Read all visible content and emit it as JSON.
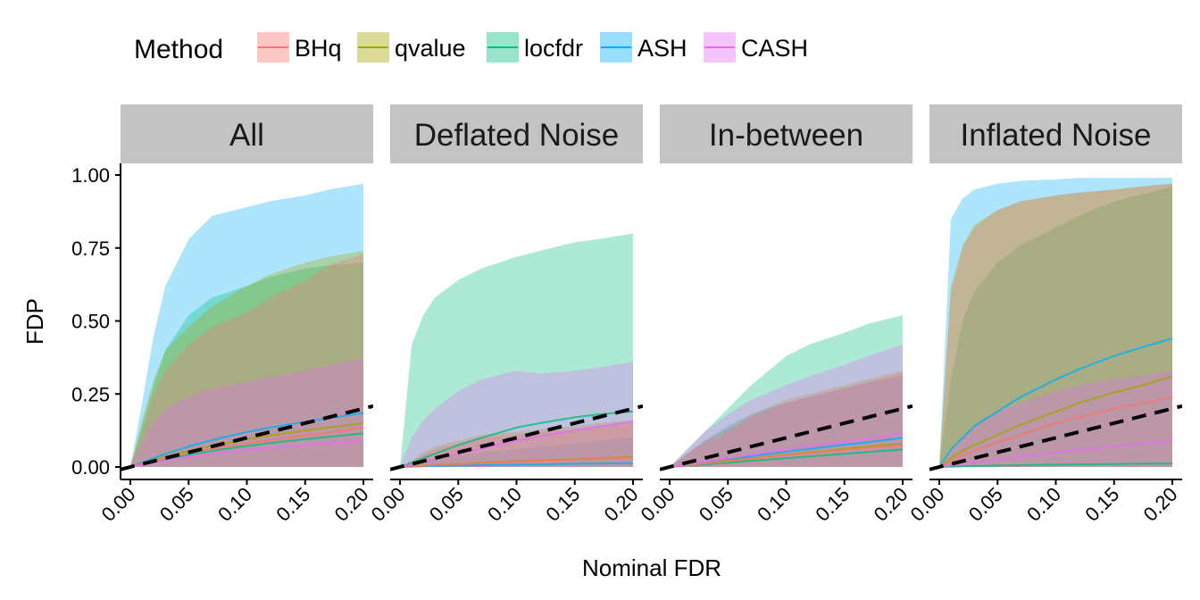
{
  "chart_data": {
    "type": "area",
    "xlabel": "Nominal FDR",
    "ylabel": "FDP",
    "xlim": [
      0,
      0.2
    ],
    "ylim": [
      0,
      1
    ],
    "x_ticks": [
      "0.00",
      "0.05",
      "0.10",
      "0.15",
      "0.20"
    ],
    "y_ticks": [
      "0.00",
      "0.25",
      "0.50",
      "0.75",
      "1.00"
    ],
    "legend": {
      "title": "Method",
      "position": "top-left",
      "entries": [
        {
          "name": "BHq",
          "color": "#F8766D"
        },
        {
          "name": "qvalue",
          "color": "#A3A500"
        },
        {
          "name": "locfdr",
          "color": "#00BF7D"
        },
        {
          "name": "ASH",
          "color": "#00B0F6"
        },
        {
          "name": "CASH",
          "color": "#E76BF3"
        }
      ]
    },
    "reference_line": {
      "slope": 1,
      "intercept": 0,
      "style": "dashed"
    },
    "x": [
      0,
      0.01,
      0.02,
      0.03,
      0.05,
      0.07,
      0.1,
      0.12,
      0.15,
      0.17,
      0.2
    ],
    "panels": [
      {
        "title": "All",
        "series": [
          {
            "name": "BHq",
            "mean": [
              0,
              0.01,
              0.02,
              0.03,
              0.047,
              0.062,
              0.08,
              0.092,
              0.108,
              0.118,
              0.135
            ],
            "upper": [
              0,
              0.12,
              0.25,
              0.33,
              0.42,
              0.48,
              0.53,
              0.58,
              0.64,
              0.69,
              0.73
            ]
          },
          {
            "name": "qvalue",
            "mean": [
              0,
              0.012,
              0.024,
              0.035,
              0.055,
              0.072,
              0.095,
              0.108,
              0.125,
              0.135,
              0.15
            ],
            "upper": [
              0,
              0.16,
              0.3,
              0.4,
              0.48,
              0.55,
              0.62,
              0.66,
              0.7,
              0.72,
              0.74
            ]
          },
          {
            "name": "locfdr",
            "mean": [
              0,
              0.009,
              0.018,
              0.027,
              0.042,
              0.055,
              0.072,
              0.082,
              0.095,
              0.103,
              0.115
            ],
            "upper": [
              0,
              0.14,
              0.28,
              0.4,
              0.52,
              0.58,
              0.62,
              0.65,
              0.68,
              0.69,
              0.7
            ]
          },
          {
            "name": "ASH",
            "mean": [
              0,
              0.015,
              0.03,
              0.045,
              0.07,
              0.092,
              0.12,
              0.135,
              0.155,
              0.167,
              0.185
            ],
            "upper": [
              0,
              0.22,
              0.45,
              0.62,
              0.78,
              0.86,
              0.89,
              0.91,
              0.93,
              0.95,
              0.97
            ]
          },
          {
            "name": "CASH",
            "mean": [
              0,
              0.008,
              0.015,
              0.022,
              0.035,
              0.045,
              0.058,
              0.066,
              0.075,
              0.082,
              0.09
            ],
            "upper": [
              0,
              0.08,
              0.15,
              0.2,
              0.24,
              0.27,
              0.29,
              0.31,
              0.33,
              0.35,
              0.37
            ]
          }
        ]
      },
      {
        "title": "Deflated Noise",
        "series": [
          {
            "name": "BHq",
            "mean": [
              0,
              0.002,
              0.004,
              0.006,
              0.01,
              0.013,
              0.018,
              0.021,
              0.025,
              0.028,
              0.032
            ],
            "upper": [
              0,
              0.02,
              0.04,
              0.06,
              0.08,
              0.1,
              0.11,
              0.12,
              0.13,
              0.14,
              0.15
            ]
          },
          {
            "name": "qvalue",
            "mean": [
              0,
              0.002,
              0.005,
              0.007,
              0.011,
              0.015,
              0.02,
              0.023,
              0.027,
              0.03,
              0.035
            ],
            "upper": [
              0,
              0.02,
              0.05,
              0.07,
              0.09,
              0.11,
              0.12,
              0.13,
              0.14,
              0.15,
              0.16
            ]
          },
          {
            "name": "locfdr",
            "mean": [
              0,
              0.015,
              0.03,
              0.045,
              0.075,
              0.1,
              0.135,
              0.15,
              0.17,
              0.18,
              0.19
            ],
            "upper": [
              0,
              0.42,
              0.52,
              0.58,
              0.64,
              0.68,
              0.72,
              0.74,
              0.77,
              0.78,
              0.8
            ]
          },
          {
            "name": "ASH",
            "mean": [
              0,
              0.001,
              0.002,
              0.003,
              0.005,
              0.006,
              0.008,
              0.009,
              0.011,
              0.012,
              0.013
            ],
            "upper": [
              0,
              0.01,
              0.02,
              0.03,
              0.04,
              0.05,
              0.06,
              0.07,
              0.08,
              0.09,
              0.1
            ]
          },
          {
            "name": "CASH",
            "mean": [
              0,
              0.008,
              0.018,
              0.026,
              0.045,
              0.062,
              0.09,
              0.105,
              0.125,
              0.138,
              0.155
            ],
            "upper": [
              0,
              0.1,
              0.16,
              0.2,
              0.26,
              0.3,
              0.33,
              0.32,
              0.33,
              0.34,
              0.36
            ]
          }
        ]
      },
      {
        "title": "In-between",
        "series": [
          {
            "name": "BHq",
            "mean": [
              0,
              0.004,
              0.008,
              0.012,
              0.02,
              0.028,
              0.04,
              0.047,
              0.058,
              0.065,
              0.075
            ],
            "upper": [
              0,
              0.03,
              0.06,
              0.08,
              0.12,
              0.17,
              0.22,
              0.24,
              0.27,
              0.29,
              0.32
            ]
          },
          {
            "name": "qvalue",
            "mean": [
              0,
              0.004,
              0.009,
              0.013,
              0.022,
              0.03,
              0.042,
              0.05,
              0.062,
              0.07,
              0.08
            ],
            "upper": [
              0,
              0.03,
              0.06,
              0.09,
              0.13,
              0.18,
              0.23,
              0.25,
              0.28,
              0.3,
              0.33
            ]
          },
          {
            "name": "locfdr",
            "mean": [
              0,
              0.003,
              0.006,
              0.009,
              0.015,
              0.021,
              0.03,
              0.036,
              0.045,
              0.051,
              0.06
            ],
            "upper": [
              0,
              0.04,
              0.08,
              0.12,
              0.2,
              0.28,
              0.38,
              0.42,
              0.46,
              0.49,
              0.52
            ]
          },
          {
            "name": "ASH",
            "mean": [
              0,
              0.005,
              0.011,
              0.016,
              0.027,
              0.037,
              0.052,
              0.062,
              0.076,
              0.085,
              0.1
            ],
            "upper": [
              0,
              0.03,
              0.06,
              0.09,
              0.14,
              0.18,
              0.22,
              0.24,
              0.27,
              0.29,
              0.31
            ]
          },
          {
            "name": "CASH",
            "mean": [
              0,
              0.006,
              0.012,
              0.018,
              0.03,
              0.042,
              0.06,
              0.071,
              0.087,
              0.097,
              0.113
            ],
            "upper": [
              0,
              0.04,
              0.08,
              0.12,
              0.18,
              0.23,
              0.28,
              0.31,
              0.35,
              0.38,
              0.42
            ]
          }
        ]
      },
      {
        "title": "Inflated Noise",
        "series": [
          {
            "name": "BHq",
            "mean": [
              0,
              0.02,
              0.04,
              0.055,
              0.085,
              0.11,
              0.15,
              0.17,
              0.2,
              0.215,
              0.24
            ],
            "upper": [
              0,
              0.6,
              0.75,
              0.82,
              0.88,
              0.91,
              0.93,
              0.94,
              0.95,
              0.96,
              0.97
            ]
          },
          {
            "name": "qvalue",
            "mean": [
              0,
              0.03,
              0.055,
              0.075,
              0.11,
              0.145,
              0.19,
              0.22,
              0.255,
              0.275,
              0.31
            ],
            "upper": [
              0,
              0.62,
              0.76,
              0.83,
              0.88,
              0.91,
              0.93,
              0.94,
              0.95,
              0.96,
              0.97
            ]
          },
          {
            "name": "locfdr",
            "mean": [
              0,
              0.001,
              0.002,
              0.003,
              0.005,
              0.006,
              0.008,
              0.009,
              0.01,
              0.011,
              0.012
            ],
            "upper": [
              0,
              0.3,
              0.5,
              0.6,
              0.7,
              0.76,
              0.82,
              0.86,
              0.91,
              0.93,
              0.96
            ]
          },
          {
            "name": "ASH",
            "mean": [
              0,
              0.06,
              0.1,
              0.14,
              0.19,
              0.24,
              0.3,
              0.335,
              0.38,
              0.405,
              0.44
            ],
            "upper": [
              0,
              0.85,
              0.92,
              0.95,
              0.97,
              0.98,
              0.985,
              0.99,
              0.99,
              0.99,
              0.99
            ]
          },
          {
            "name": "CASH",
            "mean": [
              0,
              0.005,
              0.01,
              0.015,
              0.025,
              0.035,
              0.05,
              0.058,
              0.07,
              0.078,
              0.09
            ],
            "upper": [
              0,
              0.05,
              0.1,
              0.14,
              0.19,
              0.22,
              0.26,
              0.28,
              0.3,
              0.31,
              0.33
            ]
          }
        ]
      }
    ]
  }
}
